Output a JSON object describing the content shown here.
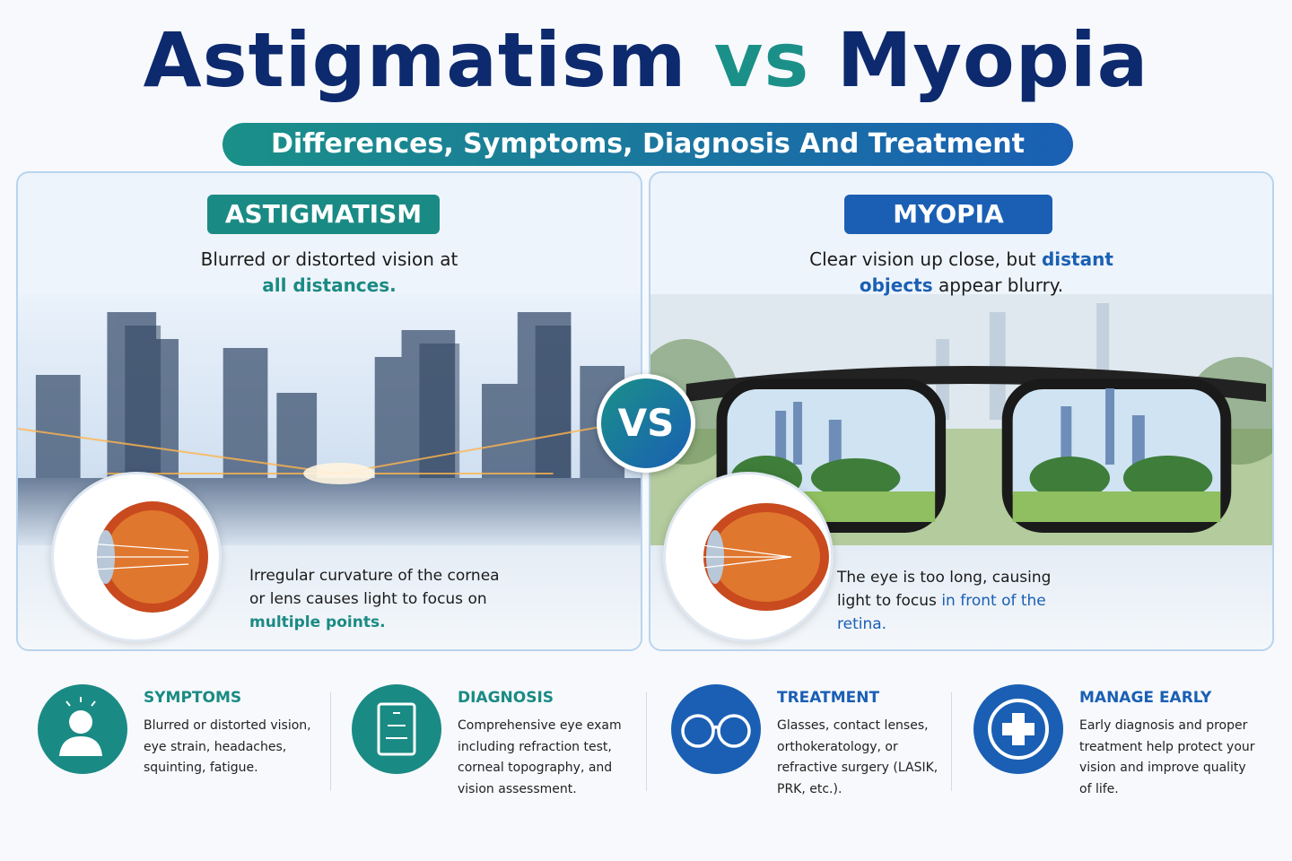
{
  "header": {
    "title": {
      "left": "Astigmatism",
      "middle": "vs",
      "right": "Myopia"
    },
    "subtitle": "Differences, Symptoms, Diagnosis And Treatment"
  },
  "panels": [
    {
      "title": "ASTIGMATISM",
      "tagline": {
        "before": "Blurred or distorted vision at",
        "highlight": "all distances."
      },
      "cause": {
        "before": "Irregular curvature of the cornea or lens causes light to focus on",
        "highlight": "multiple points."
      }
    },
    {
      "title": "MYOPIA",
      "tagline": {
        "before": "Clear vision up close, but",
        "highlight": "distant objects",
        "after": "appear blurry."
      },
      "cause": {
        "before": "The eye is too long, causing light to focus",
        "highlight": "in front of the retina."
      }
    }
  ],
  "badge": "VS",
  "features": [
    {
      "title": "SYMPTOMS",
      "text": "Blurred or distorted vision, eye strain, headaches, squinting, fatigue."
    },
    {
      "title": "DIAGNOSIS",
      "text": "Comprehensive eye exam including refraction test, corneal topography, and vision assessment."
    },
    {
      "title": "TREATMENT",
      "text": "Glasses, contact lenses, orthokeratology, or refractive surgery (LASIK, PRK, etc.)."
    },
    {
      "title": "MANAGE EARLY",
      "text": "Early diagnosis and proper treatment help protect your vision and improve quality of life."
    }
  ]
}
